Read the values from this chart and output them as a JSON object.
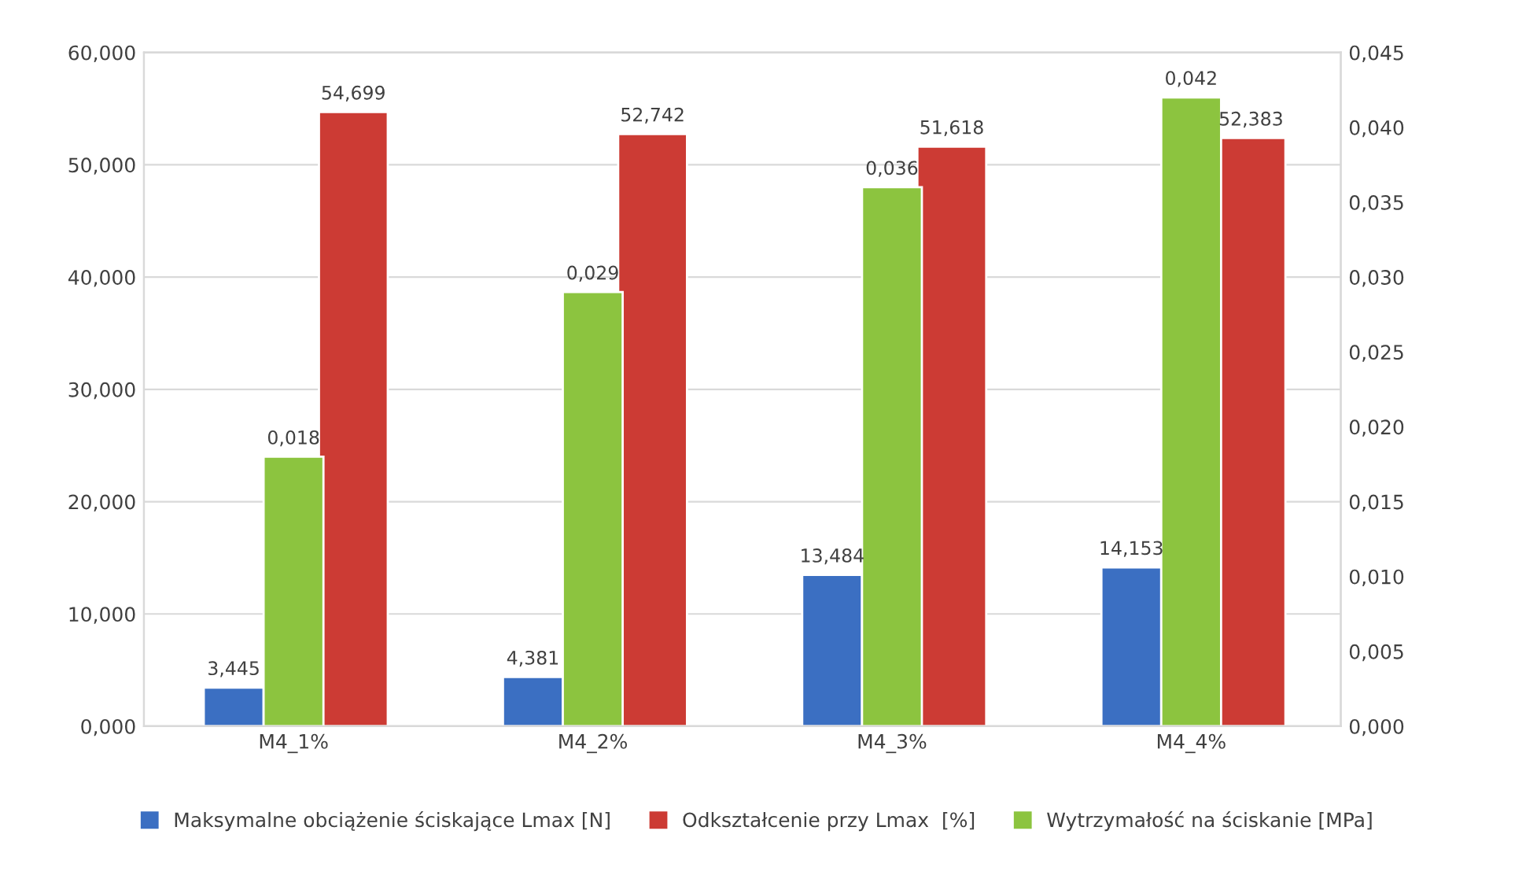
{
  "chart_data": {
    "type": "bar",
    "categories": [
      "M4_1%",
      "M4_2%",
      "M4_3%",
      "M4_4%"
    ],
    "series": [
      {
        "name": "Maksymalne obciążenie ściskające Lmax [N]",
        "color": "#3b6fc2",
        "values": [
          3.445,
          4.381,
          13.484,
          14.153
        ],
        "value_labels": [
          "3,445",
          "4,381",
          "13,484",
          "14,153"
        ]
      },
      {
        "name": "Odkształcenie przy Lmax  [%]",
        "color": "#cc3b34",
        "values": [
          54.699,
          52.742,
          51.618,
          52.383
        ],
        "value_labels": [
          "54,699",
          "52,742",
          "51,618",
          "52,383"
        ]
      },
      {
        "name": "Wytrzymałość na ściskanie [MPa]",
        "color": "#8cc43f",
        "axis": "y2",
        "values": [
          0.018,
          0.029,
          0.036,
          0.042
        ],
        "value_labels": [
          "0,018",
          "0,029",
          "0,036",
          "0,042"
        ]
      }
    ],
    "ylim": [
      0,
      60
    ],
    "yticks": [
      {
        "value": 0,
        "label": "0,000"
      },
      {
        "value": 10,
        "label": "10,000"
      },
      {
        "value": 20,
        "label": "20,000"
      },
      {
        "value": 30,
        "label": "30,000"
      },
      {
        "value": 40,
        "label": "40,000"
      },
      {
        "value": 50,
        "label": "50,000"
      },
      {
        "value": 60,
        "label": "60,000"
      }
    ],
    "y2lim": [
      0,
      0.045
    ],
    "y2ticks": [
      {
        "value": 0,
        "label": "0,000"
      },
      {
        "value": 0.005,
        "label": "0,005"
      },
      {
        "value": 0.01,
        "label": "0,010"
      },
      {
        "value": 0.015,
        "label": "0,015"
      },
      {
        "value": 0.02,
        "label": "0,020"
      },
      {
        "value": 0.025,
        "label": "0,025"
      },
      {
        "value": 0.03,
        "label": "0,030"
      },
      {
        "value": 0.035,
        "label": "0,035"
      },
      {
        "value": 0.04,
        "label": "0,040"
      },
      {
        "value": 0.045,
        "label": "0,045"
      }
    ],
    "grid": "y",
    "legend": "bottom"
  }
}
